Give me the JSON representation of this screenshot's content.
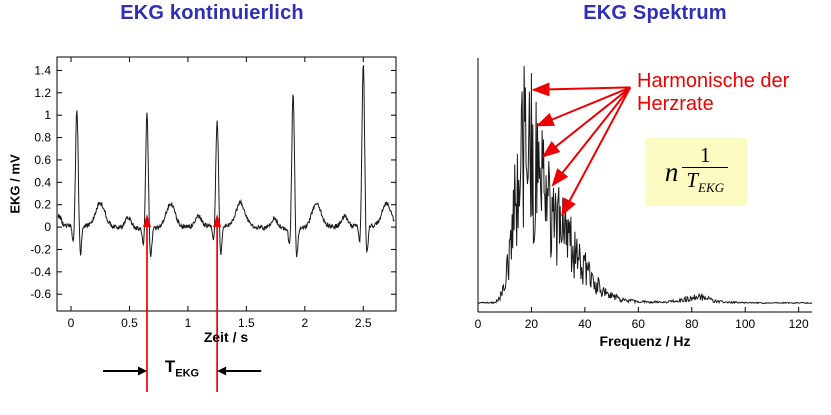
{
  "colors": {
    "title_blue": "#2e2eb8",
    "annotation_red": "#ee0000",
    "trace": "#1a1a1a",
    "formula_bg": "#fcfcc2"
  },
  "chart_data": [
    {
      "type": "line",
      "title": "EKG kontinuierlich",
      "xlabel": "Zeit / s",
      "ylabel": "EKG / mV",
      "xlim": [
        -0.12,
        2.78
      ],
      "ylim": [
        -0.75,
        1.52
      ],
      "x_ticks": [
        0,
        0.5,
        1,
        1.5,
        2,
        2.5
      ],
      "x_tick_labels": [
        "0",
        "0.5",
        "1",
        "1.5",
        "2",
        "2.5"
      ],
      "y_ticks": [
        1.4,
        1.2,
        1,
        0.8,
        0.6,
        0.4,
        0.2,
        0,
        -0.2,
        -0.4,
        -0.6
      ],
      "y_tick_labels": [
        "1.4",
        "1.2",
        "1",
        "0.8",
        "0.6",
        "0.4",
        "0.2",
        "0",
        "-0.2",
        "-0.4",
        "-0.6"
      ],
      "beats": [
        {
          "t": 0.05,
          "r": 1.05
        },
        {
          "t": 0.65,
          "r": 1.02
        },
        {
          "t": 1.25,
          "r": 0.95
        },
        {
          "t": 1.9,
          "r": 1.2
        },
        {
          "t": 2.5,
          "r": 1.45
        }
      ],
      "heart_period_s": 0.6,
      "marker_times": [
        0.65,
        1.25
      ],
      "noise_amp": 0.02,
      "sample_dt": 0.004
    },
    {
      "type": "line",
      "title": "EKG  Spektrum",
      "xlabel": "Frequenz / Hz",
      "ylabel": "",
      "xlim": [
        0,
        125
      ],
      "x_ticks": [
        0,
        20,
        40,
        60,
        80,
        100,
        120
      ],
      "x_tick_labels": [
        "0",
        "20",
        "40",
        "60",
        "80",
        "100",
        "120"
      ],
      "envelope": [
        [
          0,
          0.008
        ],
        [
          6,
          0.008
        ],
        [
          8,
          0.03
        ],
        [
          10,
          0.12
        ],
        [
          12,
          0.3
        ],
        [
          13,
          0.55
        ],
        [
          15,
          0.8
        ],
        [
          17,
          0.95
        ],
        [
          19,
          0.9
        ],
        [
          21,
          0.85
        ],
        [
          23,
          0.8
        ],
        [
          25,
          0.72
        ],
        [
          27,
          0.62
        ],
        [
          29,
          0.55
        ],
        [
          31,
          0.48
        ],
        [
          33,
          0.42
        ],
        [
          35,
          0.36
        ],
        [
          38,
          0.28
        ],
        [
          41,
          0.2
        ],
        [
          44,
          0.13
        ],
        [
          47,
          0.08
        ],
        [
          50,
          0.05
        ],
        [
          55,
          0.025
        ],
        [
          60,
          0.015
        ],
        [
          65,
          0.012
        ],
        [
          70,
          0.012
        ],
        [
          75,
          0.02
        ],
        [
          79,
          0.035
        ],
        [
          82,
          0.05
        ],
        [
          85,
          0.04
        ],
        [
          88,
          0.02
        ],
        [
          92,
          0.012
        ],
        [
          100,
          0.008
        ],
        [
          110,
          0.006
        ],
        [
          120,
          0.008
        ],
        [
          125,
          0.006
        ]
      ],
      "spikes": [
        [
          17.25,
          1.0
        ],
        [
          20,
          0.97
        ],
        [
          21.75,
          0.85
        ],
        [
          24,
          0.73
        ],
        [
          26.5,
          0.6
        ],
        [
          30,
          0.45
        ]
      ],
      "sample_df": 0.25,
      "arrow_origin": {
        "f": 57,
        "h": 0.91
      },
      "arrow_targets": [
        {
          "f": 20.8,
          "h": 0.9
        },
        {
          "f": 22.3,
          "h": 0.75
        },
        {
          "f": 24.5,
          "h": 0.62
        },
        {
          "f": 28,
          "h": 0.5
        },
        {
          "f": 31.5,
          "h": 0.375
        }
      ]
    }
  ],
  "annotations": {
    "t_label_main": "T",
    "t_label_sub": "EKG",
    "harmonics_line1": "Harmonische der",
    "harmonics_line2": "Herzrate",
    "formula_factor": "n",
    "formula_numerator": "1",
    "formula_den_main": "T",
    "formula_den_sub": "EKG"
  }
}
